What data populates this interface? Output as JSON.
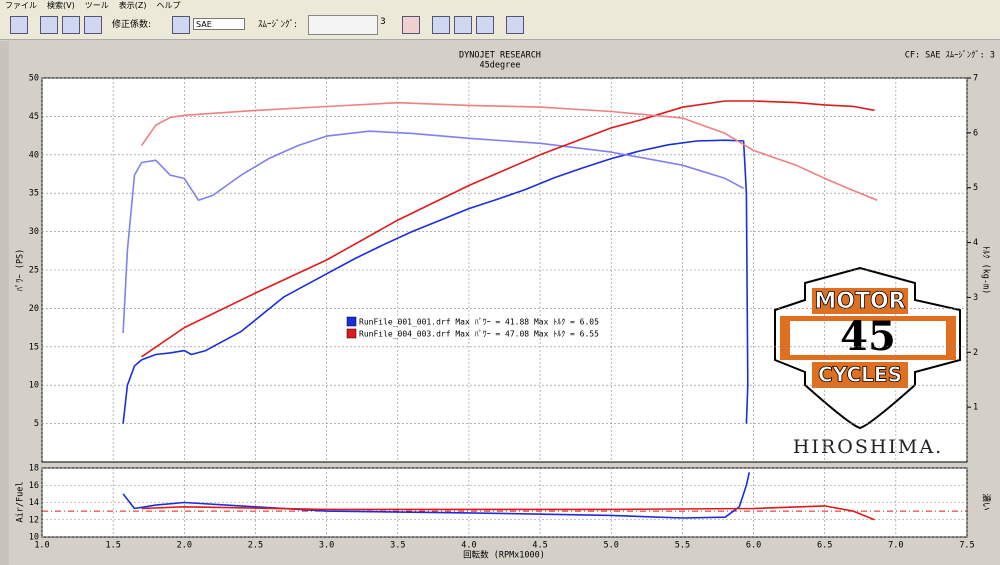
{
  "menu": [
    "ファイル",
    "検索(V)",
    "ツール",
    "表示(Z)",
    "ヘルプ"
  ],
  "toolbar": {
    "correction_label": "修正係数:",
    "correction_value": "SAE",
    "smoothing_label": "ｽﾑｰｼﾞﾝｸﾞ:",
    "smoothing_value": "3"
  },
  "logo": {
    "top": "MOTOR",
    "middle": "45",
    "bottom": "CYCLES",
    "caption": "HIROSHIMA."
  },
  "chart_data": [
    {
      "type": "line",
      "title": "DYNOJET  RESEARCH",
      "subtitle": "45degree",
      "annotation": "CF: SAE  ｽﾑｰｼﾞﾝｸﾞ: 3",
      "ylabel": "ﾊﾟﾜｰ (PS)",
      "y2label": "ﾄﾙｸ (kg-m)",
      "xlim": [
        1.0,
        7.5
      ],
      "xticks": [
        {
          "value": 1,
          "label": "1.0"
        },
        1.5,
        {
          "value": 2,
          "label": "2.0"
        },
        2.5,
        {
          "value": 3,
          "label": "3.0"
        },
        3.5,
        {
          "value": 4,
          "label": "4.0"
        },
        4.5,
        {
          "value": 5,
          "label": "5.0"
        },
        5.5,
        {
          "value": 6,
          "label": "6.0"
        },
        6.5,
        {
          "value": 7,
          "label": "7.0"
        },
        7.5
      ],
      "ylim": [
        0,
        50
      ],
      "yticks": [
        5,
        10,
        15,
        20,
        25,
        30,
        35,
        40,
        45,
        50
      ],
      "y2lim": [
        0,
        7
      ],
      "y2ticks": [
        1,
        2,
        3,
        4,
        5,
        6,
        7
      ],
      "grid": true,
      "legend": [
        "RunFile_001_001.drf Max ﾊﾟﾜｰ = 41.88  Max ﾄﾙｸ = 6.05",
        "RunFile_004_003.drf Max ﾊﾟﾜｰ = 47.08  Max ﾄﾙｸ = 6.55"
      ],
      "legend_colors": [
        "#1a2ee0",
        "#e01a1a"
      ],
      "series": [
        {
          "color": "#1a2ee0",
          "x": [
            1.57,
            1.6,
            1.65,
            1.7,
            1.8,
            1.9,
            2.0,
            2.05,
            2.15,
            2.3,
            2.4,
            2.5,
            2.6,
            2.7,
            2.8,
            3.0,
            3.2,
            3.4,
            3.6,
            3.8,
            4.0,
            4.2,
            4.4,
            4.6,
            4.8,
            5.0,
            5.2,
            5.4,
            5.6,
            5.8,
            5.93,
            5.95,
            5.96,
            5.95
          ],
          "values": [
            5,
            10,
            12.5,
            13.3,
            14,
            14.2,
            14.5,
            14,
            14.5,
            16,
            17,
            18.5,
            20,
            21.5,
            22.5,
            24.5,
            26.5,
            28.3,
            30,
            31.5,
            33,
            34.2,
            35.5,
            37,
            38.3,
            39.5,
            40.5,
            41.3,
            41.8,
            41.9,
            41.8,
            35,
            10,
            5
          ]
        },
        {
          "color": "#8080f0",
          "axis": "y2",
          "x": [
            1.57,
            1.6,
            1.65,
            1.7,
            1.8,
            1.9,
            2.0,
            2.1,
            2.2,
            2.4,
            2.6,
            2.8,
            3.0,
            3.3,
            3.6,
            4.0,
            4.5,
            5.0,
            5.5,
            5.8,
            5.93
          ],
          "values": [
            2.35,
            3.86,
            5.23,
            5.46,
            5.5,
            5.23,
            5.17,
            4.77,
            4.86,
            5.23,
            5.54,
            5.77,
            5.94,
            6.03,
            5.99,
            5.9,
            5.81,
            5.65,
            5.41,
            5.17,
            4.99
          ]
        },
        {
          "color": "#e01a1a",
          "x": [
            1.7,
            2.0,
            2.5,
            3.0,
            3.5,
            4.0,
            4.5,
            5.0,
            5.2,
            5.5,
            5.8,
            6.0,
            6.3,
            6.5,
            6.7,
            6.85
          ],
          "values": [
            13.7,
            17.5,
            22,
            26.3,
            31.5,
            36,
            40,
            43.5,
            44.5,
            46.2,
            47,
            47,
            46.8,
            46.5,
            46.3,
            45.8
          ]
        },
        {
          "color": "#f08080",
          "axis": "y2",
          "x": [
            1.7,
            1.8,
            1.9,
            2.0,
            2.5,
            3.0,
            3.5,
            4.0,
            4.5,
            5.0,
            5.5,
            5.8,
            6.0,
            6.3,
            6.5,
            6.7,
            6.87
          ],
          "values": [
            5.77,
            6.14,
            6.28,
            6.32,
            6.41,
            6.48,
            6.55,
            6.5,
            6.47,
            6.39,
            6.27,
            5.99,
            5.68,
            5.41,
            5.17,
            4.95,
            4.77
          ]
        }
      ]
    },
    {
      "type": "line",
      "ylabel": "Air/Fuel",
      "y2label": "濃い",
      "xlabel": "回転数 (RPMx1000)",
      "xlim": [
        1.0,
        7.5
      ],
      "xticks": [
        {
          "value": 1,
          "label": "1.0"
        },
        1.5,
        {
          "value": 2,
          "label": "2.0"
        },
        2.5,
        {
          "value": 3,
          "label": "3.0"
        },
        3.5,
        {
          "value": 4,
          "label": "4.0"
        },
        4.5,
        {
          "value": 5,
          "label": "5.0"
        },
        5.5,
        {
          "value": 6,
          "label": "6.0"
        },
        6.5,
        {
          "value": 7,
          "label": "7.0"
        },
        7.5
      ],
      "ylim": [
        10,
        18
      ],
      "yticks": [
        10,
        12,
        14,
        16,
        18
      ],
      "grid": true,
      "reference": 13,
      "reference_color": "#e01a1a",
      "series": [
        {
          "color": "#1a2ee0",
          "x": [
            1.57,
            1.65,
            1.8,
            2.0,
            2.5,
            3.0,
            4.0,
            5.0,
            5.5,
            5.8,
            5.9,
            5.95,
            5.97
          ],
          "values": [
            15,
            13.3,
            13.7,
            14,
            13.5,
            13,
            12.8,
            12.5,
            12.2,
            12.3,
            13.5,
            16,
            17.5
          ]
        },
        {
          "color": "#e01a1a",
          "x": [
            1.7,
            2.0,
            3.0,
            4.0,
            5.0,
            6.0,
            6.5,
            6.7,
            6.85
          ],
          "values": [
            13.3,
            13.5,
            13.2,
            13.2,
            13.2,
            13.3,
            13.6,
            13,
            12
          ]
        }
      ]
    }
  ]
}
